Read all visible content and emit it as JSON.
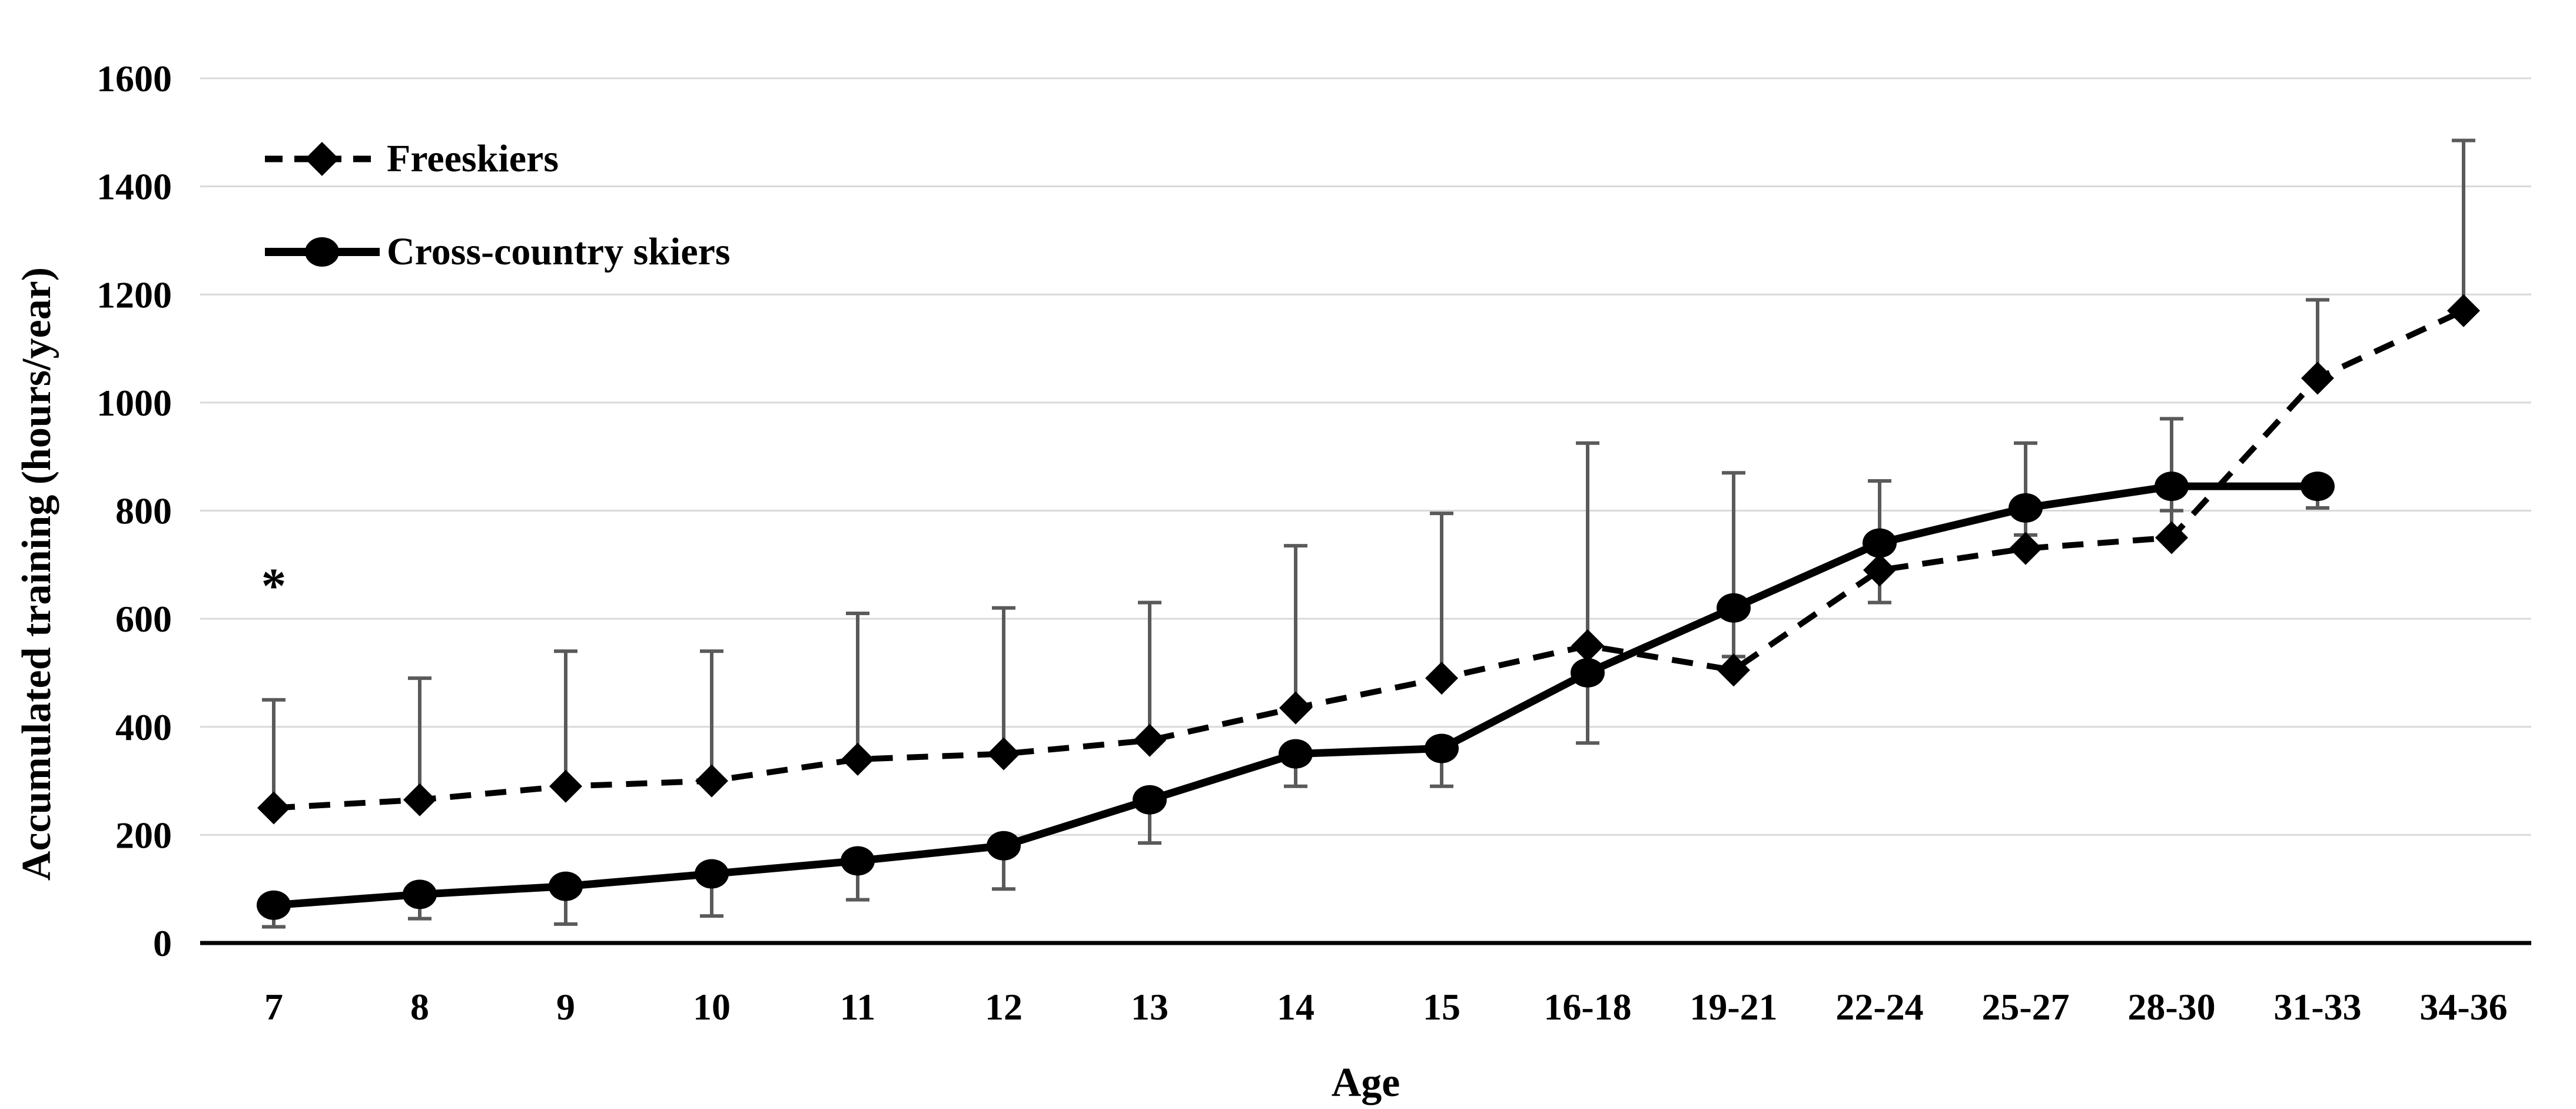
{
  "chart_data": {
    "type": "line",
    "title": "",
    "xlabel": "Age",
    "ylabel": "Accumulated training (hours/year)",
    "ylim": [
      0,
      1600
    ],
    "y_ticks": [
      0,
      200,
      400,
      600,
      800,
      1000,
      1200,
      1400,
      1600
    ],
    "grid": "horizontal",
    "legend_position": "top-left",
    "categories": [
      "7",
      "8",
      "9",
      "10",
      "11",
      "12",
      "13",
      "14",
      "15",
      "16-18",
      "19-21",
      "22-24",
      "25-27",
      "28-30",
      "31-33",
      "34-36"
    ],
    "series": [
      {
        "name": "Freeskiers",
        "marker": "diamond",
        "line_style": "dashed",
        "color": "#000000",
        "error_direction": "up",
        "values": [
          250,
          265,
          290,
          300,
          340,
          350,
          375,
          435,
          490,
          550,
          505,
          690,
          730,
          750,
          1045,
          1170
        ],
        "error_caps": [
          450,
          490,
          540,
          540,
          610,
          620,
          630,
          735,
          795,
          925,
          870,
          855,
          925,
          970,
          1190,
          1485
        ]
      },
      {
        "name": "Cross-country skiers",
        "marker": "circle",
        "line_style": "solid",
        "color": "#000000",
        "error_direction": "down",
        "values": [
          70,
          90,
          105,
          128,
          152,
          180,
          265,
          350,
          360,
          500,
          620,
          740,
          805,
          845,
          845,
          null
        ],
        "error_caps": [
          30,
          45,
          35,
          50,
          80,
          100,
          185,
          290,
          290,
          370,
          530,
          630,
          755,
          800,
          805,
          null
        ]
      }
    ],
    "annotations": [
      {
        "text": "*",
        "category_index": 0,
        "y_value": 680
      }
    ],
    "colors": {
      "grid": "#d9d9d9",
      "error_bar": "#5a5a5a",
      "axis": "#000000",
      "text": "#000000",
      "background": "#ffffff"
    }
  }
}
